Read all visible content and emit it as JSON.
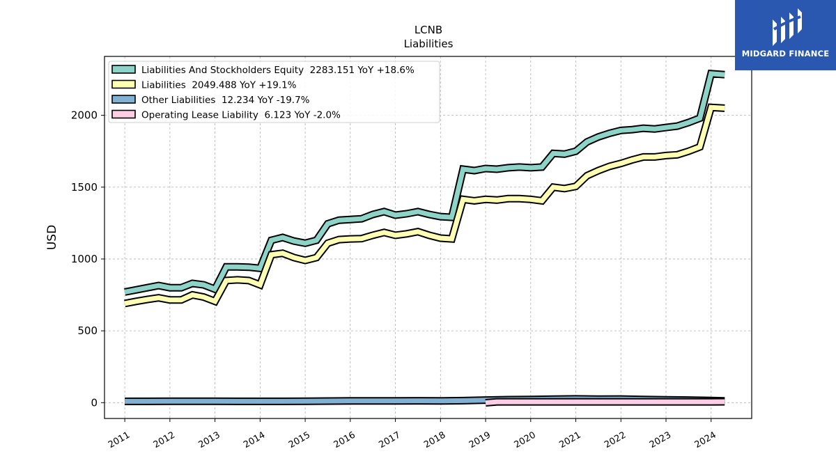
{
  "chart_data": {
    "type": "line",
    "title": "LCNB",
    "subtitle": "Liabilities",
    "ylabel": "USD",
    "xlabel": "",
    "ylim": [
      -110,
      2410
    ],
    "xlim": [
      2010.55,
      2024.9
    ],
    "yticks": [
      0,
      500,
      1000,
      1500,
      2000
    ],
    "xticks": [
      "2011",
      "2012",
      "2013",
      "2014",
      "2015",
      "2016",
      "2017",
      "2018",
      "2019",
      "2020",
      "2021",
      "2022",
      "2023",
      "2024"
    ],
    "grid": true,
    "legend_position": "top-left",
    "series": [
      {
        "name": "Liabilities And Stockholders Equity",
        "legend_label": "Liabilities And Stockholders Equity  2283.151 YoY +18.6%",
        "color": "#8dd3c7",
        "x": [
          2011.0,
          2011.25,
          2011.5,
          2011.75,
          2012.0,
          2012.25,
          2012.5,
          2012.75,
          2013.0,
          2013.25,
          2013.5,
          2013.75,
          2014.0,
          2014.25,
          2014.5,
          2014.75,
          2015.0,
          2015.25,
          2015.5,
          2015.75,
          2016.0,
          2016.25,
          2016.5,
          2016.75,
          2017.0,
          2017.25,
          2017.5,
          2017.75,
          2018.0,
          2018.25,
          2018.5,
          2018.75,
          2019.0,
          2019.25,
          2019.5,
          2019.75,
          2020.0,
          2020.25,
          2020.5,
          2020.75,
          2021.0,
          2021.25,
          2021.5,
          2021.75,
          2022.0,
          2022.25,
          2022.5,
          2022.75,
          2023.0,
          2023.25,
          2023.5,
          2023.75,
          2024.0,
          2024.3
        ],
        "values": [
          770,
          785,
          800,
          815,
          800,
          800,
          830,
          820,
          790,
          945,
          945,
          943,
          935,
          1130,
          1150,
          1125,
          1110,
          1130,
          1245,
          1270,
          1275,
          1280,
          1310,
          1330,
          1305,
          1315,
          1330,
          1310,
          1295,
          1290,
          1625,
          1615,
          1630,
          1625,
          1635,
          1640,
          1635,
          1640,
          1735,
          1730,
          1750,
          1815,
          1850,
          1875,
          1895,
          1900,
          1910,
          1905,
          1915,
          1925,
          1950,
          1980,
          2290,
          2283.151
        ]
      },
      {
        "name": "Liabilities",
        "legend_label": "Liabilities  2049.488 YoY +19.1%",
        "color": "#ffffb3",
        "x": [
          2011.0,
          2011.25,
          2011.5,
          2011.75,
          2012.0,
          2012.25,
          2012.5,
          2012.75,
          2013.0,
          2013.25,
          2013.5,
          2013.75,
          2014.0,
          2014.25,
          2014.5,
          2014.75,
          2015.0,
          2015.25,
          2015.5,
          2015.75,
          2016.0,
          2016.25,
          2016.5,
          2016.75,
          2017.0,
          2017.25,
          2017.5,
          2017.75,
          2018.0,
          2018.25,
          2018.5,
          2018.75,
          2019.0,
          2019.25,
          2019.5,
          2019.75,
          2020.0,
          2020.25,
          2020.5,
          2020.75,
          2021.0,
          2021.25,
          2021.5,
          2021.75,
          2022.0,
          2022.25,
          2022.5,
          2022.75,
          2023.0,
          2023.25,
          2023.5,
          2023.75,
          2024.0,
          2024.3
        ],
        "values": [
          690,
          705,
          718,
          730,
          715,
          715,
          750,
          735,
          705,
          850,
          855,
          850,
          820,
          1030,
          1040,
          1010,
          990,
          1010,
          1110,
          1135,
          1140,
          1142,
          1165,
          1185,
          1165,
          1175,
          1190,
          1165,
          1145,
          1140,
          1415,
          1405,
          1415,
          1410,
          1420,
          1420,
          1415,
          1405,
          1500,
          1490,
          1505,
          1580,
          1615,
          1645,
          1665,
          1690,
          1710,
          1710,
          1720,
          1725,
          1750,
          1780,
          2055,
          2049.488
        ]
      },
      {
        "name": "Other Liabilities",
        "legend_label": "Other Liabilities  12.234 YoY -19.7%",
        "color": "#80b1d3",
        "x": [
          2011.0,
          2011.5,
          2012.0,
          2012.5,
          2013.0,
          2013.5,
          2014.0,
          2014.5,
          2015.0,
          2015.5,
          2016.0,
          2016.5,
          2017.0,
          2017.5,
          2018.0,
          2018.5,
          2019.0,
          2019.5,
          2020.0,
          2020.5,
          2021.0,
          2021.5,
          2022.0,
          2022.5,
          2023.0,
          2023.5,
          2024.0,
          2024.3
        ],
        "values": [
          9,
          9,
          10,
          10,
          10,
          9,
          9,
          9,
          10,
          11,
          12,
          12,
          12,
          13,
          12,
          14,
          18,
          21,
          22,
          24,
          26,
          24,
          25,
          22,
          20,
          18,
          15,
          12.234
        ]
      },
      {
        "name": "Operating Lease Liability",
        "legend_label": "Operating Lease Liability  6.123 YoY -2.0%",
        "color": "#fccde5",
        "x": [
          2019.0,
          2019.25,
          2019.5,
          2020.0,
          2020.5,
          2021.0,
          2021.5,
          2022.0,
          2022.5,
          2023.0,
          2023.5,
          2024.0,
          2024.3
        ],
        "values": [
          -1,
          6,
          6,
          6,
          6,
          6,
          6,
          6,
          6,
          6,
          6,
          6,
          6.123
        ]
      }
    ]
  },
  "logo": {
    "text": "MIDGARD FINANCE"
  }
}
